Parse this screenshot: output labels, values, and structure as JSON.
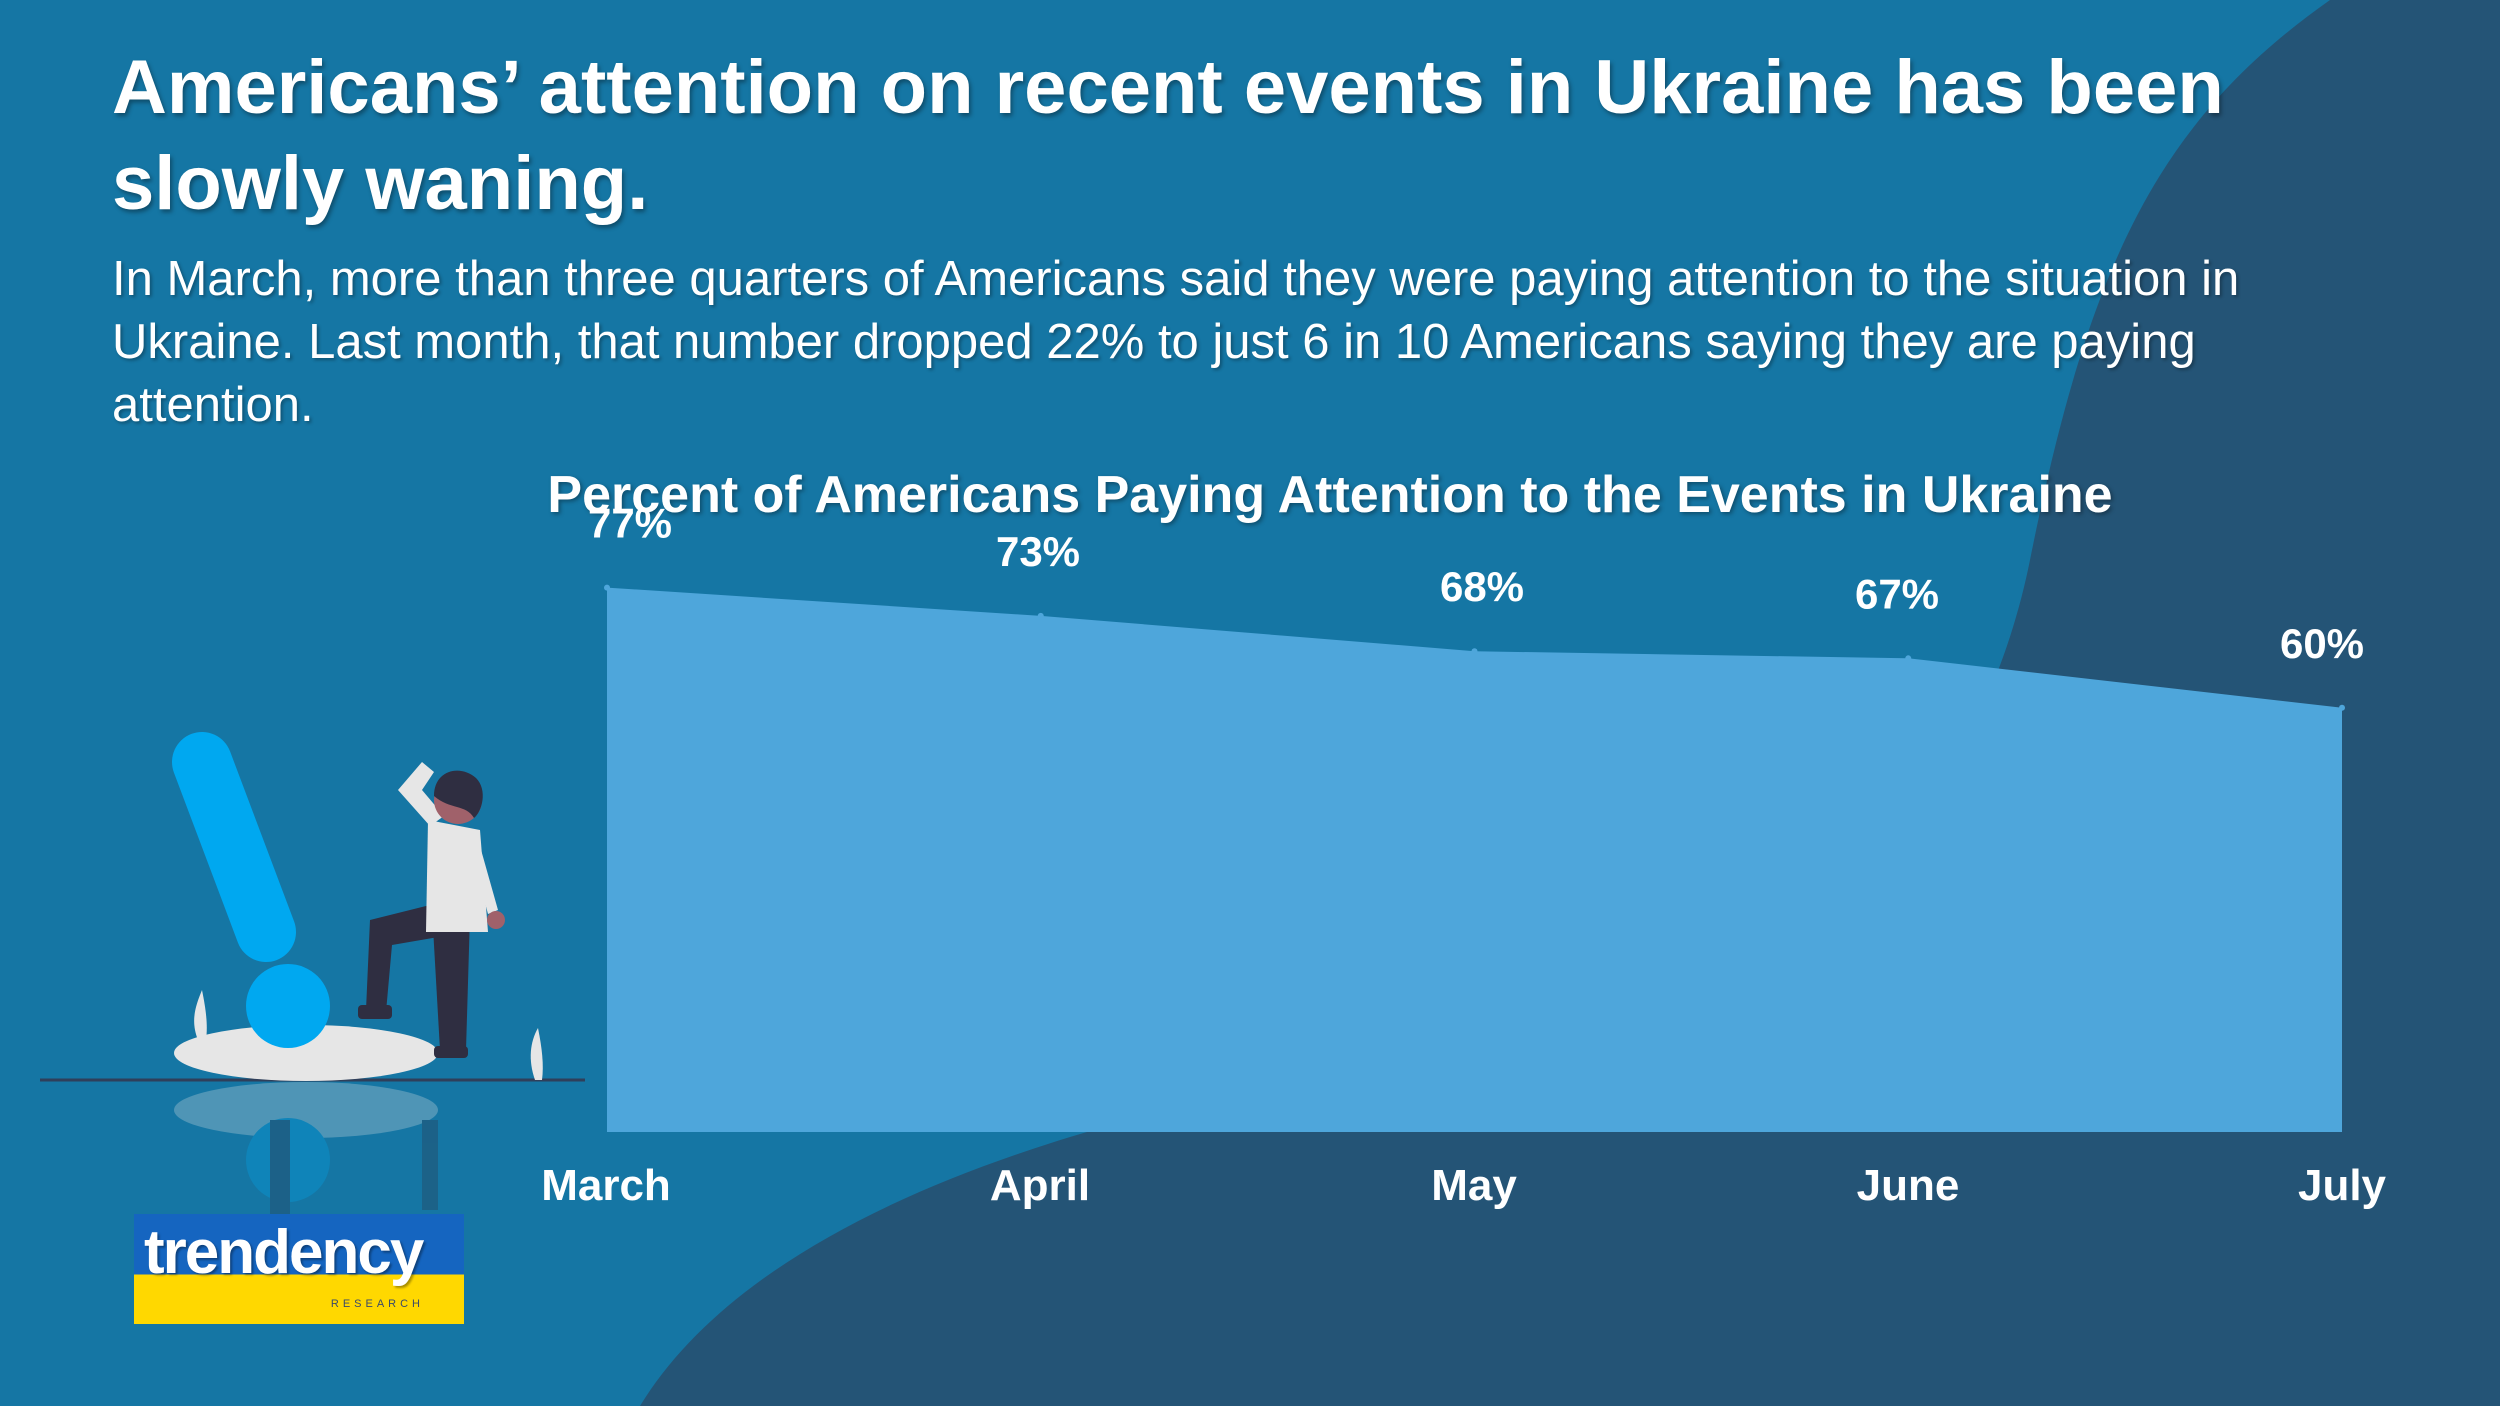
{
  "colors": {
    "background": "#1576a4",
    "background_curve": "#245476",
    "area_fill": "#4ea6db",
    "text": "#ffffff",
    "figure_accent": "#00a8f0"
  },
  "headline": "Americans’ attention on recent events in Ukraine has been slowly waning.",
  "subtitle": "In March, more than three quarters of Americans said they were paying attention to the situation in Ukraine. Last month, that number dropped 22% to just 6 in 10 Americans saying they are paying attention.",
  "chart_data": {
    "type": "area",
    "title": "Percent of Americans Paying Attention to the Events in Ukraine",
    "categories": [
      "March",
      "April",
      "May",
      "June",
      "July"
    ],
    "values": [
      77,
      73,
      68,
      67,
      60
    ],
    "data_labels": [
      "77%",
      "73%",
      "68%",
      "67%",
      "60%"
    ],
    "ylim": [
      0,
      100
    ],
    "grid": false,
    "legend": "none"
  },
  "logo": {
    "text": "trendency",
    "subtext": "RESEARCH"
  },
  "icons": {
    "illustration": "exclamation-person-illustration"
  }
}
